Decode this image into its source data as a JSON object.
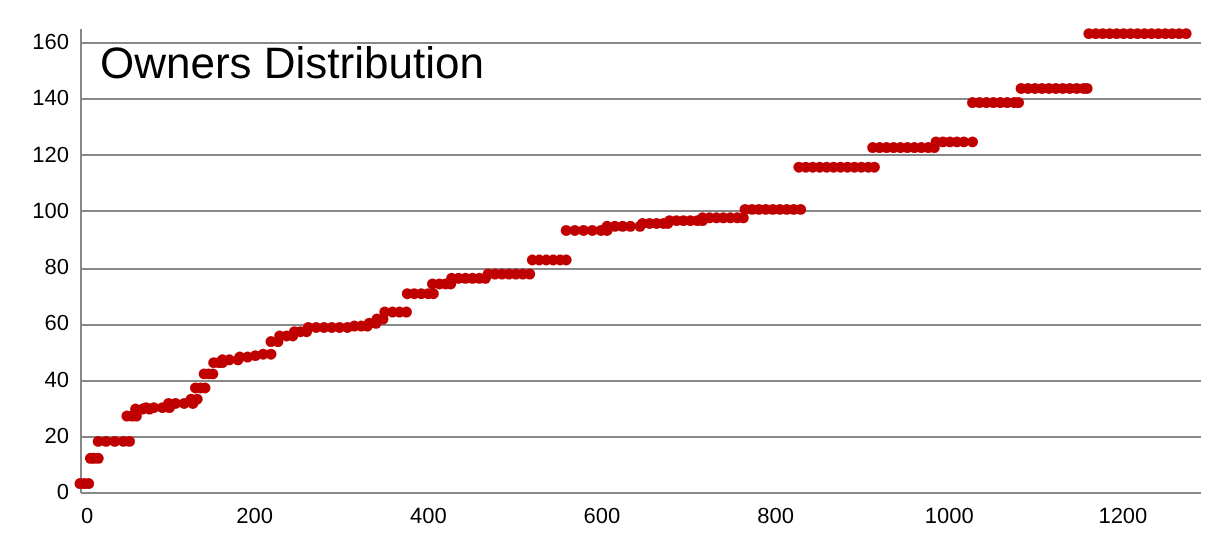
{
  "chart_data": {
    "type": "scatter",
    "title": "Owners Distribution",
    "marker": "circle",
    "grid": "y",
    "xlim": [
      0,
      1290
    ],
    "xticks": [
      0,
      200,
      400,
      600,
      800,
      1000,
      1200
    ],
    "ylim": [
      0,
      165
    ],
    "yticks": [
      0,
      20,
      40,
      60,
      80,
      100,
      120,
      140,
      160
    ],
    "series": [
      {
        "color": "#c00000",
        "x": [
          0,
          5,
          10,
          12,
          16,
          21,
          21,
          30,
          40,
          50,
          57,
          54,
          60,
          65,
          64,
          72,
          80,
          76,
          85,
          95,
          103,
          102,
          110,
          120,
          130,
          128,
          135,
          133,
          139,
          144,
          143,
          148,
          153,
          154,
          160,
          164,
          164,
          172,
          182,
          184,
          193,
          202,
          211,
          220,
          220,
          228,
          230,
          238,
          245,
          247,
          254,
          261,
          263,
          272,
          281,
          290,
          299,
          308,
          316,
          324,
          331,
          333,
          341,
          342,
          349,
          351,
          360,
          368,
          376,
          377,
          385,
          393,
          401,
          407,
          406,
          414,
          421,
          427,
          428,
          436,
          444,
          452,
          460,
          467,
          470,
          478,
          486,
          494,
          502,
          510,
          518,
          521,
          529,
          537,
          545,
          553,
          560,
          560,
          570,
          580,
          590,
          600,
          607,
          607,
          616,
          625,
          634,
          645,
          648,
          656,
          664,
          672,
          677,
          679,
          687,
          695,
          703,
          711,
          717,
          717,
          725,
          733,
          741,
          749,
          757,
          764,
          766,
          774,
          782,
          790,
          798,
          806,
          814,
          822,
          830,
          828,
          836,
          844,
          852,
          860,
          868,
          876,
          884,
          892,
          900,
          908,
          915,
          913,
          921,
          929,
          937,
          945,
          953,
          961,
          969,
          977,
          984,
          986,
          994,
          1002,
          1010,
          1018,
          1028,
          1028,
          1036,
          1044,
          1052,
          1060,
          1068,
          1076,
          1081,
          1084,
          1092,
          1100,
          1108,
          1116,
          1124,
          1132,
          1140,
          1148,
          1156,
          1160,
          1162,
          1170,
          1178,
          1186,
          1194,
          1202,
          1210,
          1218,
          1226,
          1234,
          1242,
          1250,
          1258,
          1266,
          1274
        ],
        "values": [
          3,
          3,
          3,
          12,
          12,
          12,
          18,
          18,
          18,
          18,
          18,
          27,
          27,
          27,
          29.5,
          29.5,
          29.5,
          30,
          30,
          30,
          30,
          31.5,
          31.5,
          31.5,
          31.5,
          33,
          33,
          37,
          37,
          37,
          42,
          42,
          42,
          46,
          46,
          46,
          47,
          47,
          47,
          48,
          48,
          48.5,
          49,
          49,
          53.5,
          53.5,
          55.5,
          55.5,
          55.5,
          57,
          57,
          57,
          58.5,
          58.5,
          58.5,
          58.5,
          58.5,
          58.5,
          59,
          59,
          59,
          60,
          60,
          61.5,
          61.5,
          64,
          64,
          64,
          64,
          70.5,
          70.5,
          70.5,
          70.5,
          70.5,
          74,
          74,
          74,
          74,
          76,
          76,
          76,
          76,
          76,
          76,
          77.5,
          77.5,
          77.5,
          77.5,
          77.5,
          77.5,
          77.5,
          82.5,
          82.5,
          82.5,
          82.5,
          82.5,
          82.5,
          93,
          93,
          93,
          93,
          93,
          93,
          94.5,
          94.5,
          94.5,
          94.5,
          94.5,
          95.5,
          95.5,
          95.5,
          95.5,
          95.5,
          96.5,
          96.5,
          96.5,
          96.5,
          96.5,
          96.5,
          97.5,
          97.5,
          97.5,
          97.5,
          97.5,
          97.5,
          97.5,
          100.5,
          100.5,
          100.5,
          100.5,
          100.5,
          100.5,
          100.5,
          100.5,
          100.5,
          115.5,
          115.5,
          115.5,
          115.5,
          115.5,
          115.5,
          115.5,
          115.5,
          115.5,
          115.5,
          115.5,
          115.5,
          122.5,
          122.5,
          122.5,
          122.5,
          122.5,
          122.5,
          122.5,
          122.5,
          122.5,
          122.5,
          124.5,
          124.5,
          124.5,
          124.5,
          124.5,
          124.5,
          138.5,
          138.5,
          138.5,
          138.5,
          138.5,
          138.5,
          138.5,
          138.5,
          143.5,
          143.5,
          143.5,
          143.5,
          143.5,
          143.5,
          143.5,
          143.5,
          143.5,
          143.5,
          143.5,
          163,
          163,
          163,
          163,
          163,
          163,
          163,
          163,
          163,
          163,
          163,
          163,
          163,
          163,
          163
        ]
      }
    ]
  }
}
